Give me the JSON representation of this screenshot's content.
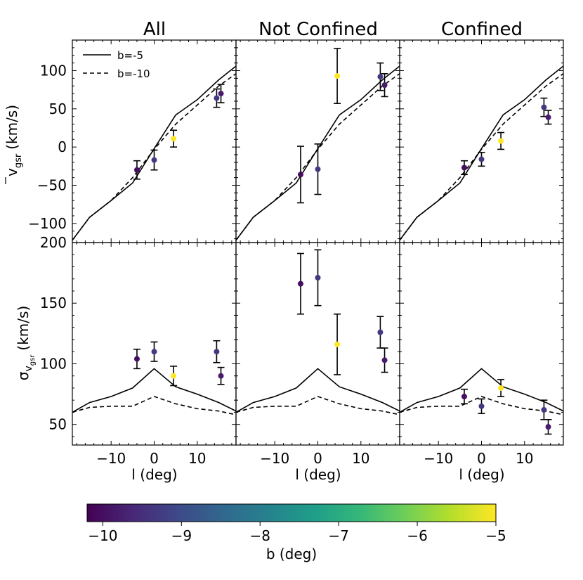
{
  "figure": {
    "x_axis_label": "l (deg)",
    "y_label_top_main": "v",
    "y_label_top_sub": "gsr",
    "y_label_top_unit": "(km/s)",
    "y_label_bottom_main": "σ",
    "y_label_bottom_sub1": "v",
    "y_label_bottom_sub2": "gsr",
    "y_label_bottom_unit": "(km/s)",
    "legend": [
      {
        "label": "b=-5",
        "style": "solid"
      },
      {
        "label": "b=-10",
        "style": "dashed"
      }
    ],
    "colorbar": {
      "label": "b (deg)",
      "range": [
        -10.2,
        -5.0
      ],
      "ticks": [
        -10,
        -9,
        -8,
        -7,
        -6,
        -5
      ],
      "tick_labels": [
        "−10",
        "−9",
        "−8",
        "−7",
        "−6",
        "−5"
      ],
      "colormap": [
        "#440154",
        "#482878",
        "#3e4989",
        "#31688e",
        "#26828e",
        "#1f9e89",
        "#35b779",
        "#6ece58",
        "#b5de2b",
        "#fde725"
      ]
    }
  },
  "chart_data": {
    "type": "scatter",
    "columns": [
      "All",
      "Not Confined",
      "Confined"
    ],
    "xlim": [
      -19,
      19
    ],
    "x_ticks": [
      -10,
      0,
      10
    ],
    "x_tick_labels": [
      "−10",
      "0",
      "10"
    ],
    "rows": [
      {
        "quantity": "mean_vgsr",
        "ylim": [
          -125,
          140
        ],
        "y_ticks": [
          -100,
          -50,
          0,
          50,
          100
        ],
        "y_tick_labels": [
          "−100",
          "−50",
          "0",
          "50",
          "100"
        ],
        "model_lines": [
          {
            "name": "b=-5",
            "style": "solid",
            "x": [
              -19,
              -15,
              -10,
              -5,
              0,
              5,
              10,
              15,
              19
            ],
            "y": [
              -122,
              -92,
              -70,
              -47,
              -2,
              42,
              62,
              88,
              106
            ]
          },
          {
            "name": "b=-10",
            "style": "dashed",
            "x": [
              -19,
              -15,
              -10,
              -5,
              0,
              5,
              10,
              15,
              19
            ],
            "y": [
              -122,
              -92,
              -70,
              -40,
              -3,
              30,
              55,
              80,
              96
            ]
          }
        ],
        "panels": [
          {
            "points": [
              {
                "x": -4.0,
                "y": -30,
                "err": 12,
                "b": -10.0
              },
              {
                "x": 0.0,
                "y": -17,
                "err": 13,
                "b": -9.3
              },
              {
                "x": 4.5,
                "y": 11,
                "err": 11,
                "b": -5.0
              },
              {
                "x": 14.5,
                "y": 64,
                "err": 12,
                "b": -9.3
              },
              {
                "x": 15.5,
                "y": 70,
                "err": 12,
                "b": -9.8
              }
            ]
          },
          {
            "points": [
              {
                "x": -4.0,
                "y": -36,
                "err": 37,
                "b": -10.0
              },
              {
                "x": 0.0,
                "y": -29,
                "err": 33,
                "b": -9.3
              },
              {
                "x": 4.5,
                "y": 93,
                "err": 36,
                "b": -5.0
              },
              {
                "x": 14.5,
                "y": 92,
                "err": 18,
                "b": -9.3
              },
              {
                "x": 15.5,
                "y": 81,
                "err": 15,
                "b": -9.8
              }
            ]
          },
          {
            "points": [
              {
                "x": -4.0,
                "y": -27,
                "err": 9,
                "b": -10.0
              },
              {
                "x": 0.0,
                "y": -16,
                "err": 9,
                "b": -9.3
              },
              {
                "x": 4.5,
                "y": 8,
                "err": 11,
                "b": -5.0
              },
              {
                "x": 14.5,
                "y": 52,
                "err": 12,
                "b": -9.3
              },
              {
                "x": 15.5,
                "y": 39,
                "err": 9,
                "b": -9.8
              }
            ]
          }
        ]
      },
      {
        "quantity": "sigma_vgsr",
        "ylim": [
          33,
          200
        ],
        "y_ticks": [
          50,
          100,
          150,
          200
        ],
        "y_tick_labels": [
          "50",
          "100",
          "150",
          "200"
        ],
        "model_lines": [
          {
            "name": "b=-5",
            "style": "solid",
            "x": [
              -19,
              -15,
              -10,
              -5,
              0,
              5,
              10,
              15,
              19
            ],
            "y": [
              60,
              68,
              73,
              80,
              96,
              81,
              75,
              68,
              61
            ]
          },
          {
            "name": "b=-10",
            "style": "dashed",
            "x": [
              -19,
              -15,
              -10,
              -5,
              0,
              5,
              10,
              15,
              19
            ],
            "y": [
              60,
              64,
              65,
              65,
              73,
              67,
              63,
              61,
              58
            ]
          }
        ],
        "panels": [
          {
            "points": [
              {
                "x": -4.0,
                "y": 104,
                "err": 8,
                "b": -10.0
              },
              {
                "x": 0.0,
                "y": 110,
                "err": 8,
                "b": -9.3
              },
              {
                "x": 4.5,
                "y": 90,
                "err": 8,
                "b": -5.0
              },
              {
                "x": 14.5,
                "y": 110,
                "err": 9,
                "b": -9.3
              },
              {
                "x": 15.5,
                "y": 90,
                "err": 7,
                "b": -9.8
              }
            ]
          },
          {
            "points": [
              {
                "x": -4.0,
                "y": 166,
                "err": 25,
                "b": -10.0
              },
              {
                "x": 0.0,
                "y": 171,
                "err": 23,
                "b": -9.3
              },
              {
                "x": 4.5,
                "y": 116,
                "err": 25,
                "b": -5.0
              },
              {
                "x": 14.5,
                "y": 126,
                "err": 13,
                "b": -9.3
              },
              {
                "x": 15.5,
                "y": 103,
                "err": 10,
                "b": -9.8
              }
            ]
          },
          {
            "points": [
              {
                "x": -4.0,
                "y": 73,
                "err": 6,
                "b": -10.0
              },
              {
                "x": 0.0,
                "y": 65,
                "err": 6,
                "b": -9.3
              },
              {
                "x": 4.5,
                "y": 80,
                "err": 7,
                "b": -5.0
              },
              {
                "x": 14.5,
                "y": 62,
                "err": 8,
                "b": -9.3
              },
              {
                "x": 15.5,
                "y": 48,
                "err": 6,
                "b": -9.8
              }
            ]
          }
        ]
      }
    ]
  }
}
